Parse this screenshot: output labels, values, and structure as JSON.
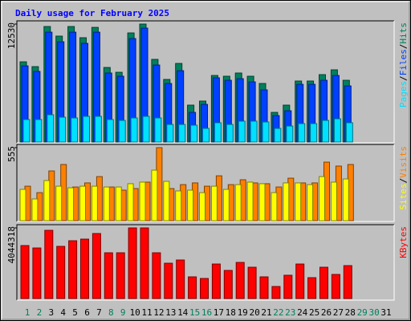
{
  "chart_data": [
    {
      "type": "bar",
      "title": "Daily usage for February 2025",
      "ylim": [
        0,
        12530
      ],
      "yticks": [
        12530
      ],
      "legend_separator": "/",
      "series": [
        {
          "name": "Hits",
          "color": "#00805c",
          "values": [
            8520,
            8010,
            12270,
            11250,
            12270,
            11080,
            12180,
            7920,
            7410,
            11590,
            12530,
            8780,
            6650,
            8350,
            3920,
            4350,
            7070,
            6990,
            7330,
            6990,
            6220,
            3150,
            3920,
            6480,
            6480,
            7160,
            7670,
            6560,
            null,
            null,
            null
          ]
        },
        {
          "name": "Files",
          "color": "#0040ff",
          "values": [
            8090,
            7500,
            11670,
            10650,
            11670,
            10480,
            11670,
            7330,
            6990,
            10990,
            12100,
            8180,
            6220,
            7580,
            3150,
            4000,
            6820,
            6560,
            6730,
            6390,
            5540,
            2810,
            3320,
            6130,
            6130,
            6560,
            7070,
            5960,
            null,
            null,
            null
          ]
        },
        {
          "name": "Pages",
          "color": "#00e0ff",
          "values": [
            2390,
            2390,
            2900,
            2640,
            2560,
            2730,
            2730,
            2390,
            2300,
            2560,
            2730,
            2560,
            1870,
            1870,
            1790,
            1450,
            2050,
            1870,
            2220,
            2220,
            2130,
            1450,
            1700,
            1960,
            1960,
            2300,
            2470,
            2050,
            null,
            null,
            null
          ]
        }
      ]
    },
    {
      "type": "bar",
      "ylim": [
        0,
        555
      ],
      "yticks": [
        555
      ],
      "legend_separator": "/",
      "series": [
        {
          "name": "Visits",
          "color": "#ff8000",
          "values": [
            262,
            213,
            378,
            427,
            256,
            287,
            335,
            256,
            232,
            244,
            293,
            555,
            244,
            274,
            287,
            262,
            341,
            274,
            311,
            287,
            281,
            256,
            323,
            287,
            287,
            445,
            415,
            427,
            null,
            null,
            null
          ]
        },
        {
          "name": "Sites",
          "color": "#ffff00",
          "values": [
            238,
            165,
            305,
            262,
            250,
            262,
            262,
            256,
            256,
            281,
            293,
            384,
            299,
            226,
            232,
            213,
            262,
            238,
            274,
            293,
            281,
            213,
            287,
            287,
            274,
            335,
            293,
            317,
            null,
            null,
            null
          ]
        }
      ]
    },
    {
      "type": "bar",
      "ylim": [
        0,
        4044318
      ],
      "yticks": [
        4044318
      ],
      "categories": [
        "1",
        "2",
        "3",
        "4",
        "5",
        "6",
        "7",
        "8",
        "9",
        "10",
        "11",
        "12",
        "13",
        "14",
        "15",
        "16",
        "17",
        "18",
        "19",
        "20",
        "21",
        "22",
        "23",
        "24",
        "25",
        "26",
        "27",
        "28",
        "29",
        "30",
        "31"
      ],
      "category_colors": [
        "#00805c",
        "#00805c",
        "#000000",
        "#000000",
        "#000000",
        "#000000",
        "#000000",
        "#00805c",
        "#00805c",
        "#000000",
        "#000000",
        "#000000",
        "#000000",
        "#000000",
        "#00805c",
        "#00805c",
        "#000000",
        "#000000",
        "#000000",
        "#000000",
        "#000000",
        "#00805c",
        "#00805c",
        "#000000",
        "#000000",
        "#000000",
        "#000000",
        "#000000",
        "#00805c",
        "#00805c",
        "#000000"
      ],
      "series": [
        {
          "name": "KBytes",
          "color": "#ff0000",
          "values": [
            3033000,
            2895000,
            3906000,
            2987000,
            3309000,
            3401000,
            3723000,
            2620000,
            2620000,
            4044318,
            4044318,
            2620000,
            2022000,
            2206000,
            1241000,
            1149000,
            1976000,
            1609000,
            2068000,
            1792000,
            1241000,
            689000,
            1333000,
            1976000,
            1195000,
            1792000,
            1379000,
            1884000,
            null,
            null,
            null
          ]
        }
      ]
    }
  ]
}
